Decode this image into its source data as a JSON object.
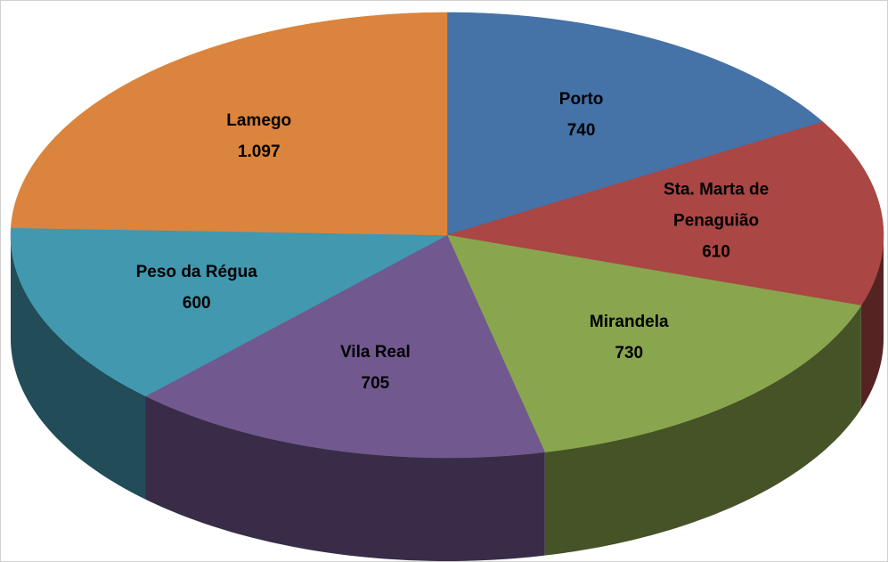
{
  "chart_data": {
    "type": "pie",
    "categories": [
      "Porto",
      "Sta. Marta de Penaguião",
      "Mirandela",
      "Vila Real",
      "Peso da Régua",
      "Lamego"
    ],
    "values": [
      740,
      610,
      730,
      705,
      600,
      1097
    ],
    "value_labels": [
      "740",
      "610",
      "730",
      "705",
      "600",
      "1.097"
    ],
    "colors": [
      "#4572a7",
      "#aa4643",
      "#89a54e",
      "#71588f",
      "#4198af",
      "#db843d"
    ]
  }
}
